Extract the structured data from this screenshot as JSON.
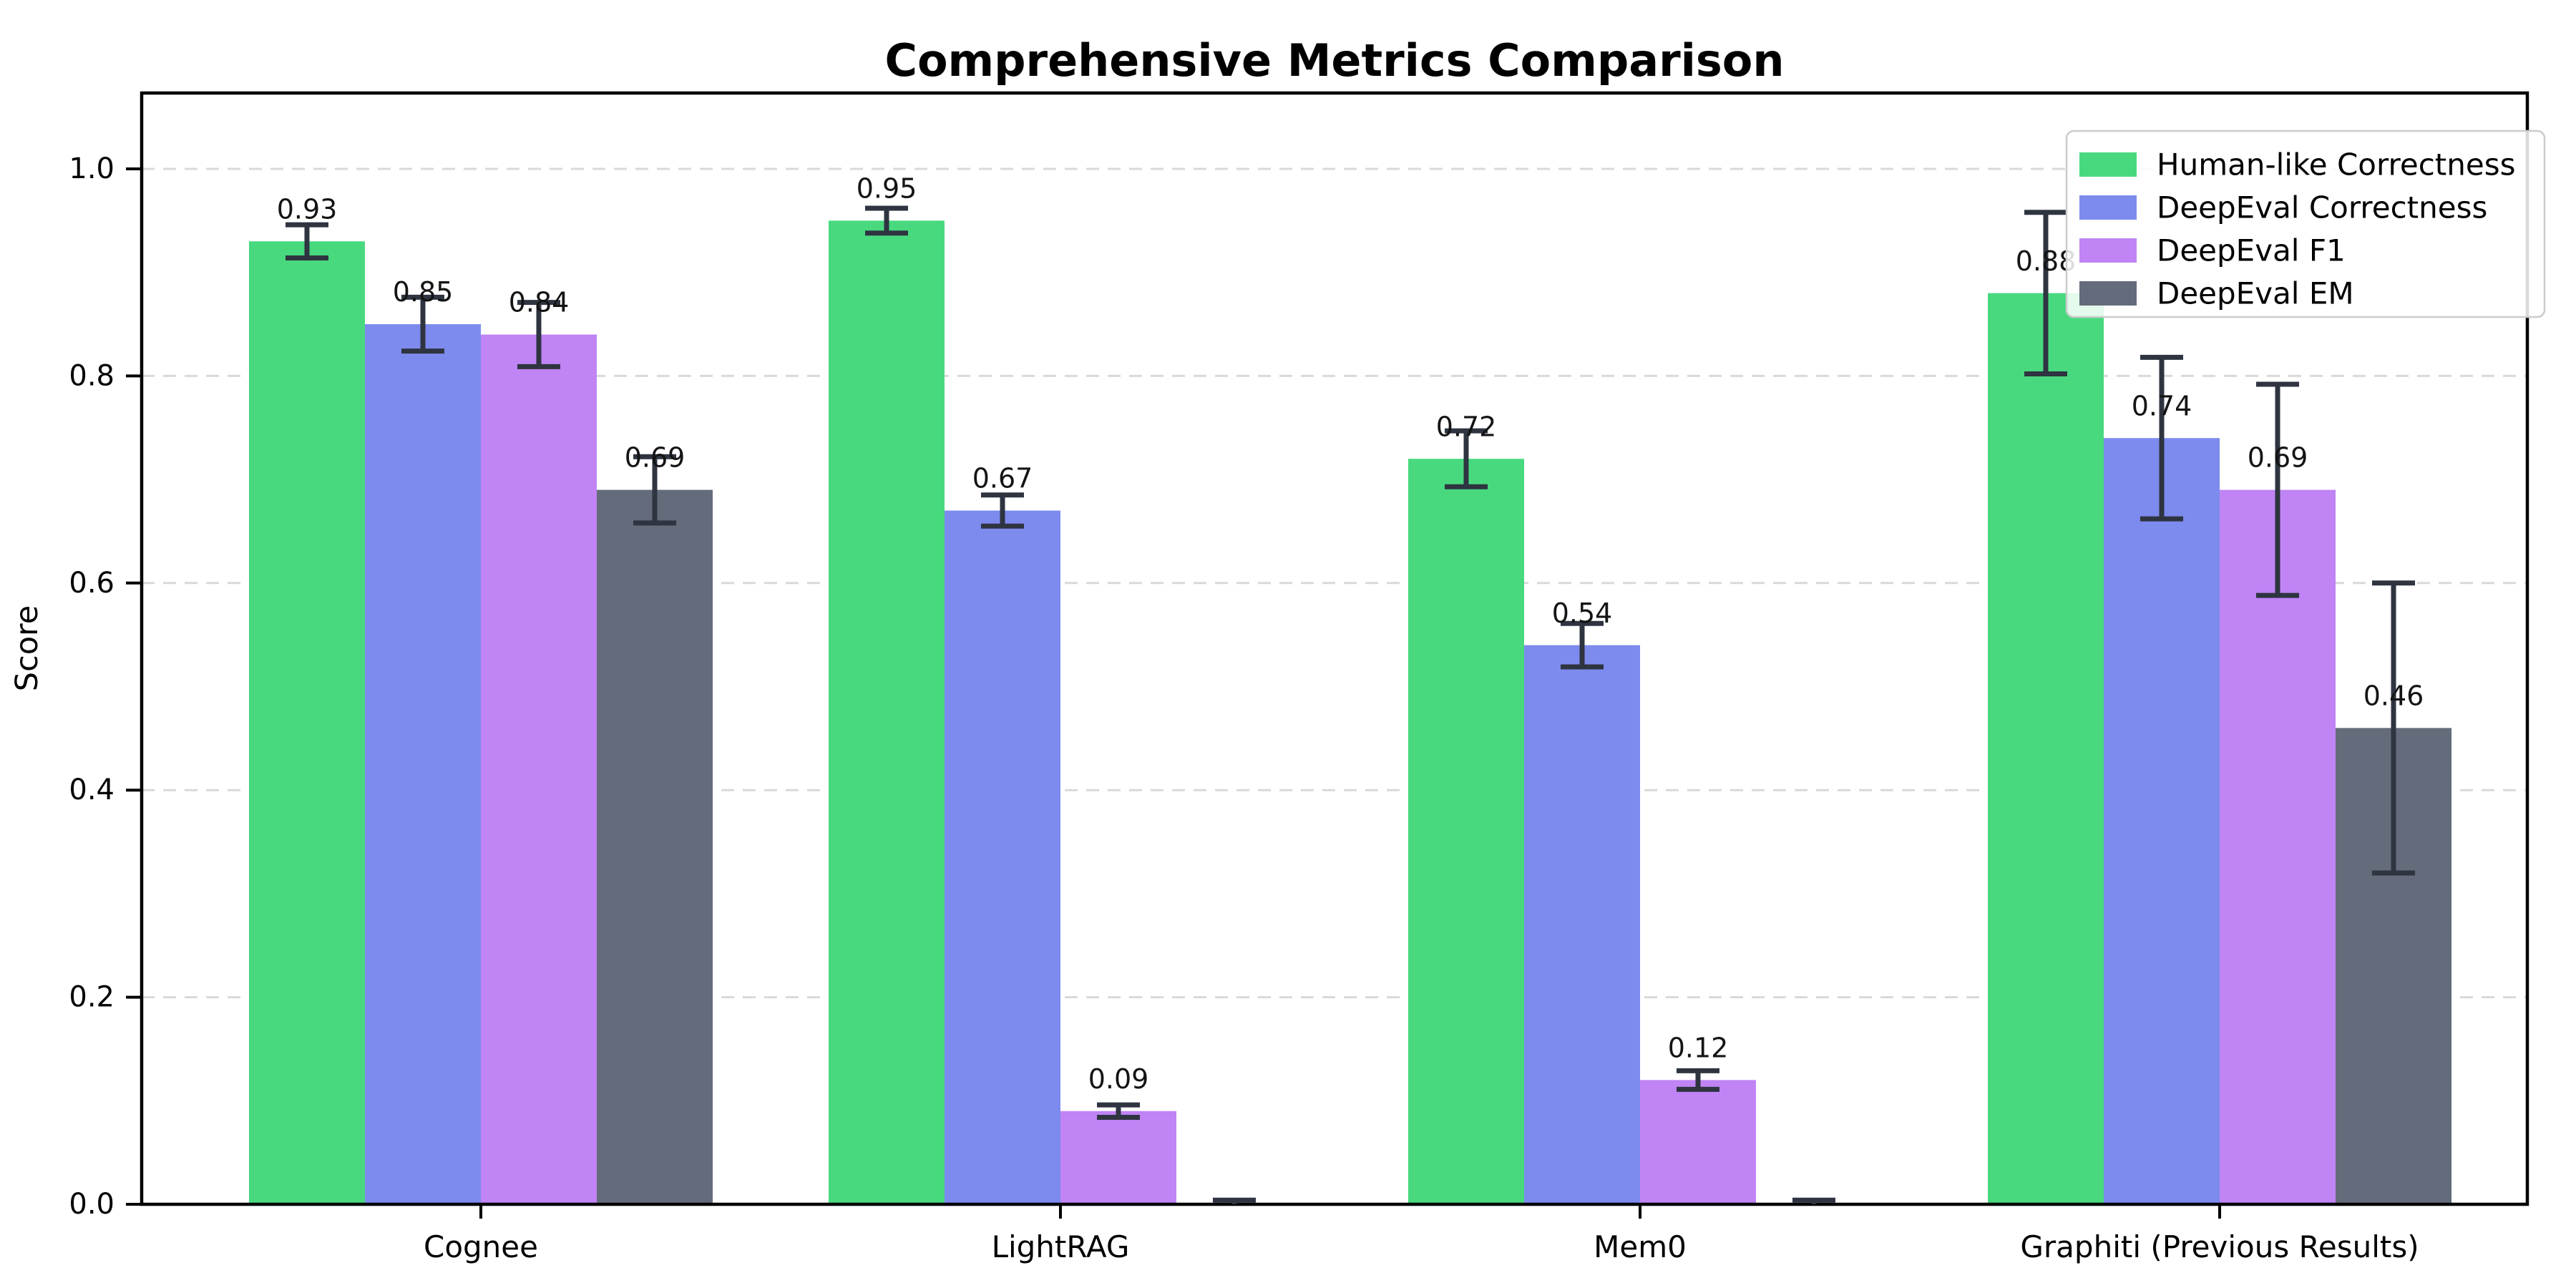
{
  "chart_data": {
    "type": "bar",
    "title": "Comprehensive Metrics Comparison",
    "xlabel": "",
    "ylabel": "Score",
    "categories": [
      "Cognee",
      "LightRAG",
      "Mem0",
      "Graphiti (Previous Results)"
    ],
    "series": [
      {
        "name": "Human-like Correctness",
        "color": "#48d97f",
        "values": [
          0.93,
          0.95,
          0.72,
          0.88
        ],
        "errors": [
          0.016,
          0.012,
          0.027,
          0.078
        ],
        "bar_labels": [
          "0.93",
          "0.95",
          "0.72",
          "0.88"
        ]
      },
      {
        "name": "DeepEval Correctness",
        "color": "#7d8bee",
        "values": [
          0.85,
          0.67,
          0.54,
          0.74
        ],
        "errors": [
          0.026,
          0.015,
          0.021,
          0.078
        ],
        "bar_labels": [
          "0.85",
          "0.67",
          "0.54",
          "0.74"
        ]
      },
      {
        "name": "DeepEval F1",
        "color": "#c084f4",
        "values": [
          0.84,
          0.09,
          0.12,
          0.69
        ],
        "errors": [
          0.031,
          0.006,
          0.009,
          0.102
        ],
        "bar_labels": [
          "0.84",
          "0.09",
          "0.12",
          "0.69"
        ]
      },
      {
        "name": "DeepEval EM",
        "color": "#646b7a",
        "values": [
          0.69,
          0.0,
          0.0,
          0.46
        ],
        "errors": [
          0.032,
          0.004,
          0.004,
          0.14
        ],
        "bar_labels": [
          "0.69",
          null,
          null,
          "0.46"
        ]
      }
    ],
    "error_bar_color": "#2e3440",
    "yticks": {
      "values": [
        0.0,
        0.2,
        0.4,
        0.6,
        0.8,
        1.0
      ],
      "labels": [
        "0.0",
        "0.2",
        "0.4",
        "0.6",
        "0.8",
        "1.0"
      ]
    },
    "ylim": [
      0,
      1.07
    ],
    "grid": "horizontal-dashed",
    "legend": {
      "position": "upper right",
      "items": [
        "Human-like Correctness",
        "DeepEval Correctness",
        "DeepEval F1",
        "DeepEval EM"
      ]
    }
  }
}
